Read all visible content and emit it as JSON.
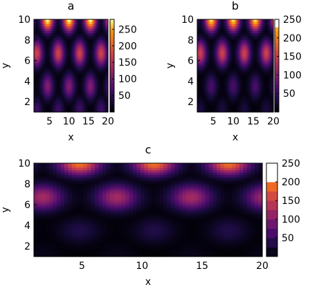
{
  "chart_data": [
    {
      "panel": "a",
      "type": "heatmap",
      "title": "a",
      "xlabel": "x",
      "ylabel": "y",
      "xlim": [
        1,
        20
      ],
      "ylim": [
        1,
        10
      ],
      "xticks": [
        "5",
        "10",
        "15",
        "20"
      ],
      "yticks": [
        "2",
        "4",
        "6",
        "8",
        "10"
      ],
      "colorbar": {
        "ticks": [
          "50",
          "100",
          "150",
          "200",
          "250"
        ],
        "range": [
          0,
          280
        ],
        "levels": "continuous"
      },
      "field": {
        "peak_columns_x": [
          4.5,
          10,
          14.5,
          19.5
        ],
        "top_row_max": 280,
        "row_peaks": [
          {
            "y": 10,
            "value": 280
          },
          {
            "y": 6.7,
            "value": 170
          },
          {
            "y": 3.5,
            "value": 110
          },
          {
            "y": 1.2,
            "value": 60
          }
        ],
        "row_shift": true
      }
    },
    {
      "panel": "b",
      "type": "heatmap",
      "title": "b",
      "xlabel": "x",
      "ylabel": "y",
      "xlim": [
        1,
        20
      ],
      "ylim": [
        1,
        10
      ],
      "xticks": [
        "5",
        "10",
        "15",
        "20"
      ],
      "yticks": [
        "2",
        "4",
        "6",
        "8",
        "10"
      ],
      "colorbar": {
        "ticks": [
          "50",
          "100",
          "150",
          "200",
          "250"
        ],
        "range": [
          0,
          250
        ],
        "levels": "partly stepped (white above ~225)"
      },
      "field": {
        "peak_columns_x": [
          4.5,
          10,
          14.5,
          19.5
        ],
        "top_row_max": 240,
        "row_peaks": [
          {
            "y": 10,
            "value": 240
          },
          {
            "y": 6.7,
            "value": 150
          },
          {
            "y": 3.5,
            "value": 60
          },
          {
            "y": 1.2,
            "value": 30
          }
        ],
        "row_shift": true
      }
    },
    {
      "panel": "c",
      "type": "heatmap",
      "title": "c",
      "xlabel": "x",
      "ylabel": "y",
      "xlim": [
        1,
        20
      ],
      "ylim": [
        1,
        10
      ],
      "xticks": [
        "5",
        "10",
        "15",
        "20"
      ],
      "yticks": [
        "2",
        "4",
        "6",
        "8",
        "10"
      ],
      "colorbar": {
        "ticks": [
          "50",
          "100",
          "150",
          "200",
          "250"
        ],
        "range": [
          0,
          250
        ],
        "levels": "stepped"
      },
      "field": {
        "peak_columns_x": [
          4.8,
          11,
          17.2
        ],
        "top_row_max": 190,
        "row_peaks": [
          {
            "y": 10,
            "value": 190
          },
          {
            "y": 6.7,
            "value": 120
          },
          {
            "y": 3.5,
            "value": 35
          },
          {
            "y": 1.2,
            "value": 10
          }
        ],
        "row_shift": true
      }
    }
  ]
}
